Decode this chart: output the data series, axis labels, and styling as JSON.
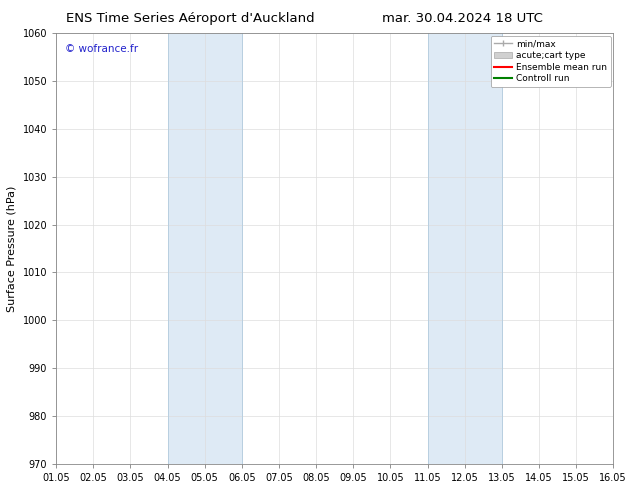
{
  "title_left": "ENS Time Series Aéroport d'Auckland",
  "title_right": "mar. 30.04.2024 18 UTC",
  "ylabel": "Surface Pressure (hPa)",
  "ylim": [
    970,
    1060
  ],
  "yticks": [
    970,
    980,
    990,
    1000,
    1010,
    1020,
    1030,
    1040,
    1050,
    1060
  ],
  "xlim_start": 0,
  "xlim_end": 15,
  "xtick_labels": [
    "01.05",
    "02.05",
    "03.05",
    "04.05",
    "05.05",
    "06.05",
    "07.05",
    "08.05",
    "09.05",
    "10.05",
    "11.05",
    "12.05",
    "13.05",
    "14.05",
    "15.05",
    "16.05"
  ],
  "shaded_regions": [
    {
      "xstart": 3.0,
      "xend": 5.0,
      "color": "#deeaf5"
    },
    {
      "xstart": 10.0,
      "xend": 12.0,
      "color": "#deeaf5"
    }
  ],
  "shaded_borders": [
    {
      "x": 3.0,
      "color": "#b8cfe0"
    },
    {
      "x": 5.0,
      "color": "#b8cfe0"
    },
    {
      "x": 10.0,
      "color": "#b8cfe0"
    },
    {
      "x": 12.0,
      "color": "#b8cfe0"
    }
  ],
  "watermark_text": "© wofrance.fr",
  "watermark_color": "#2222cc",
  "legend_items": [
    {
      "label": "min/max",
      "color": "#aaaaaa",
      "lw": 1.0
    },
    {
      "label": "acute;cart type",
      "color": "#cccccc",
      "lw": 6
    },
    {
      "label": "Ensemble mean run",
      "color": "#ff0000",
      "lw": 1.5
    },
    {
      "label": "Controll run",
      "color": "#008000",
      "lw": 1.5
    }
  ],
  "bg_color": "#ffffff",
  "grid_color": "#dddddd",
  "title_fontsize": 9.5,
  "tick_fontsize": 7,
  "ylabel_fontsize": 8,
  "watermark_fontsize": 7.5,
  "legend_fontsize": 6.5
}
